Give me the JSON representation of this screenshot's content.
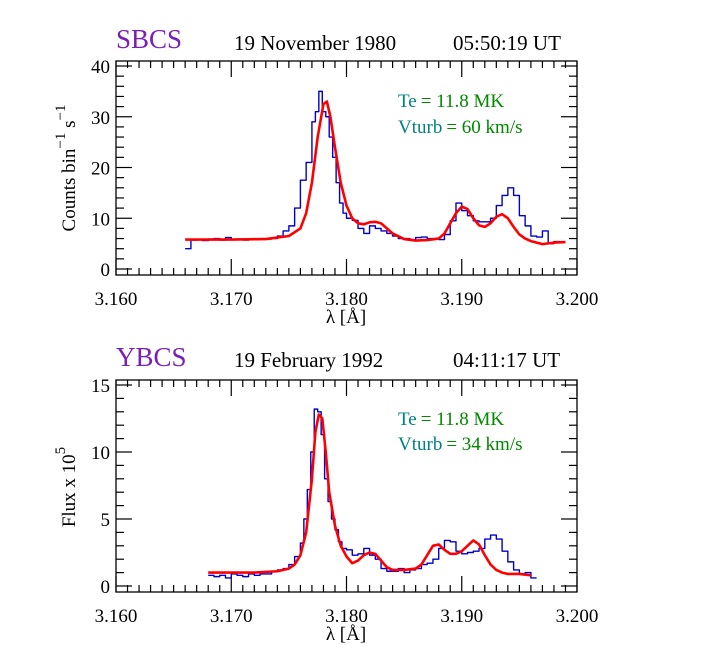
{
  "chart_data": [
    {
      "type": "line",
      "instrument": "SBCS",
      "date": "19 November 1980",
      "time": "05:50:19 UT",
      "xlabel": "λ [Å]",
      "ylabel": "Counts bin",
      "ylabel_sup1": "−1",
      "ylabel_mid": " s",
      "ylabel_sup2": "−1",
      "xlim": [
        3.16,
        3.2
      ],
      "ylim": [
        0,
        40
      ],
      "xticks": [
        3.16,
        3.17,
        3.18,
        3.19,
        3.2
      ],
      "xtick_labels": [
        "3.160",
        "3.170",
        "3.180",
        "3.190",
        "3.200"
      ],
      "yticks": [
        0,
        10,
        20,
        30,
        40
      ],
      "ytick_labels": [
        "0",
        "10",
        "20",
        "30",
        "40"
      ],
      "annotations": [
        {
          "label": "Te",
          "value": "= 11.8 MK"
        },
        {
          "label": "Vturb",
          "value": "= 60 km/s"
        }
      ],
      "series": [
        {
          "name": "observed",
          "style": "step",
          "color": "#0000cc",
          "x": [
            3.166,
            3.1665,
            3.167,
            3.1675,
            3.168,
            3.1685,
            3.169,
            3.1695,
            3.17,
            3.1705,
            3.171,
            3.1715,
            3.172,
            3.1725,
            3.173,
            3.1735,
            3.174,
            3.1745,
            3.175,
            3.1755,
            3.176,
            3.1765,
            3.177,
            3.1773,
            3.1776,
            3.1779,
            3.1782,
            3.1785,
            3.1788,
            3.1791,
            3.1794,
            3.1797,
            3.18,
            3.1805,
            3.181,
            3.1815,
            3.182,
            3.1825,
            3.183,
            3.1835,
            3.184,
            3.1845,
            3.185,
            3.1855,
            3.186,
            3.1865,
            3.187,
            3.1875,
            3.188,
            3.1885,
            3.189,
            3.1895,
            3.19,
            3.1905,
            3.191,
            3.1915,
            3.192,
            3.1925,
            3.193,
            3.1935,
            3.194,
            3.1945,
            3.195,
            3.1955,
            3.196,
            3.1965,
            3.197,
            3.1975,
            3.198
          ],
          "y": [
            4.0,
            5.7,
            5.8,
            5.6,
            5.9,
            6.0,
            5.7,
            6.2,
            5.8,
            5.9,
            5.7,
            5.8,
            5.8,
            6.0,
            5.9,
            6.0,
            6.5,
            7.5,
            8.5,
            12,
            17.5,
            21,
            29,
            31,
            35,
            31,
            30,
            26,
            22,
            17,
            13,
            11,
            10,
            9.6,
            8.0,
            7.0,
            8.5,
            8.0,
            7.5,
            7.0,
            6.5,
            6.0,
            6.0,
            5.8,
            6.2,
            6.3,
            6.0,
            6.0,
            5.8,
            6.8,
            9.5,
            13,
            11.5,
            10.5,
            9.5,
            9.3,
            9.3,
            10.0,
            12.5,
            14.5,
            16.0,
            14.5,
            10.5,
            8.5,
            6.5,
            6.3,
            7.5,
            5.0,
            5.4
          ]
        },
        {
          "name": "fit",
          "style": "line",
          "color": "#ff0000",
          "x": [
            3.166,
            3.167,
            3.17,
            3.173,
            3.175,
            3.176,
            3.1765,
            3.177,
            3.1775,
            3.178,
            3.1783,
            3.1786,
            3.179,
            3.1795,
            3.18,
            3.1805,
            3.181,
            3.1815,
            3.182,
            3.1825,
            3.183,
            3.1835,
            3.184,
            3.185,
            3.186,
            3.187,
            3.188,
            3.1885,
            3.189,
            3.1895,
            3.19,
            3.1905,
            3.191,
            3.1915,
            3.192,
            3.1925,
            3.193,
            3.1935,
            3.194,
            3.1945,
            3.195,
            3.1955,
            3.196,
            3.197,
            3.198,
            3.199
          ],
          "y": [
            5.8,
            5.8,
            5.8,
            5.9,
            6.5,
            8.0,
            11,
            17,
            26,
            32.5,
            33,
            30,
            24,
            17,
            12.5,
            10.0,
            9.0,
            8.8,
            9.2,
            9.3,
            9.0,
            8.0,
            7.0,
            5.9,
            5.6,
            5.7,
            6.0,
            7.0,
            9.0,
            11,
            12.3,
            11.8,
            10.0,
            8.6,
            8.3,
            9.0,
            10.3,
            10.8,
            10.0,
            8.3,
            6.8,
            6.0,
            5.5,
            4.9,
            5.2,
            5.3
          ]
        }
      ]
    },
    {
      "type": "line",
      "instrument": "YBCS",
      "date": "19 February 1992",
      "time": "04:11:17 UT",
      "xlabel": "λ [Å]",
      "ylabel": "Flux x 10",
      "ylabel_sup": "5",
      "xlim": [
        3.16,
        3.2
      ],
      "ylim": [
        0,
        15
      ],
      "xticks": [
        3.16,
        3.17,
        3.18,
        3.19,
        3.2
      ],
      "xtick_labels": [
        "3.160",
        "3.170",
        "3.180",
        "3.190",
        "3.200"
      ],
      "yticks": [
        0,
        5,
        10,
        15
      ],
      "ytick_labels": [
        "0",
        "5",
        "10",
        "15"
      ],
      "annotations": [
        {
          "label": "Te",
          "value": "= 11.8 MK"
        },
        {
          "label": "Vturb",
          "value": "= 34 km/s"
        }
      ],
      "series": [
        {
          "name": "observed",
          "style": "step",
          "color": "#0000cc",
          "x": [
            3.168,
            3.1685,
            3.169,
            3.1695,
            3.17,
            3.1705,
            3.171,
            3.1715,
            3.172,
            3.1725,
            3.173,
            3.1735,
            3.174,
            3.1745,
            3.175,
            3.1755,
            3.176,
            3.1763,
            3.1766,
            3.1769,
            3.1772,
            3.1775,
            3.1778,
            3.1781,
            3.1784,
            3.1787,
            3.179,
            3.1793,
            3.1796,
            3.18,
            3.1805,
            3.181,
            3.1815,
            3.182,
            3.1825,
            3.183,
            3.1835,
            3.184,
            3.1845,
            3.185,
            3.1855,
            3.186,
            3.1865,
            3.187,
            3.1875,
            3.188,
            3.1885,
            3.189,
            3.1895,
            3.19,
            3.1905,
            3.191,
            3.1915,
            3.192,
            3.1925,
            3.193,
            3.1935,
            3.194,
            3.1945,
            3.195,
            3.1955,
            3.196
          ],
          "y": [
            0.8,
            0.7,
            0.8,
            0.6,
            0.9,
            0.8,
            0.7,
            0.9,
            0.8,
            0.9,
            0.9,
            1.1,
            1.2,
            1.3,
            1.6,
            2.2,
            3.2,
            5.0,
            7.2,
            10.0,
            13.2,
            13.0,
            11.3,
            8.0,
            6.3,
            5.0,
            4.2,
            3.3,
            2.8,
            2.7,
            2.3,
            2.4,
            2.8,
            2.3,
            2.0,
            1.3,
            1.1,
            1.1,
            1.3,
            1.0,
            1.2,
            1.3,
            1.6,
            1.7,
            2.0,
            2.8,
            3.4,
            3.3,
            2.6,
            2.4,
            2.5,
            2.6,
            2.8,
            3.5,
            3.8,
            3.5,
            2.6,
            1.8,
            1.2,
            0.9,
            1.0,
            0.6
          ]
        },
        {
          "name": "fit",
          "style": "line",
          "color": "#ff0000",
          "x": [
            3.168,
            3.17,
            3.172,
            3.174,
            3.175,
            3.1755,
            3.176,
            3.1765,
            3.177,
            3.1773,
            3.1776,
            3.1779,
            3.1782,
            3.1785,
            3.179,
            3.1795,
            3.18,
            3.1805,
            3.181,
            3.1815,
            3.182,
            3.1825,
            3.183,
            3.1835,
            3.184,
            3.185,
            3.186,
            3.1865,
            3.187,
            3.1875,
            3.188,
            3.1885,
            3.189,
            3.1895,
            3.19,
            3.1905,
            3.191,
            3.1915,
            3.192,
            3.1925,
            3.193,
            3.1935,
            3.194,
            3.1945,
            3.195,
            3.196
          ],
          "y": [
            1.0,
            1.0,
            1.0,
            1.1,
            1.3,
            1.6,
            2.3,
            4.0,
            8.0,
            11.5,
            12.8,
            12.5,
            10.0,
            7.0,
            4.5,
            3.0,
            2.2,
            1.7,
            1.9,
            2.3,
            2.5,
            2.4,
            1.9,
            1.4,
            1.2,
            1.2,
            1.3,
            1.6,
            2.3,
            3.0,
            3.1,
            2.7,
            2.4,
            2.4,
            2.6,
            3.0,
            3.4,
            3.1,
            2.3,
            1.6,
            1.2,
            1.0,
            0.9,
            0.9,
            0.9,
            0.8
          ]
        }
      ]
    }
  ],
  "colors": {
    "instrument": "#7a1fb8",
    "annotation_label": "#008080",
    "annotation_value": "#008800",
    "observed": "#0000cc",
    "fit": "#ff0000"
  }
}
